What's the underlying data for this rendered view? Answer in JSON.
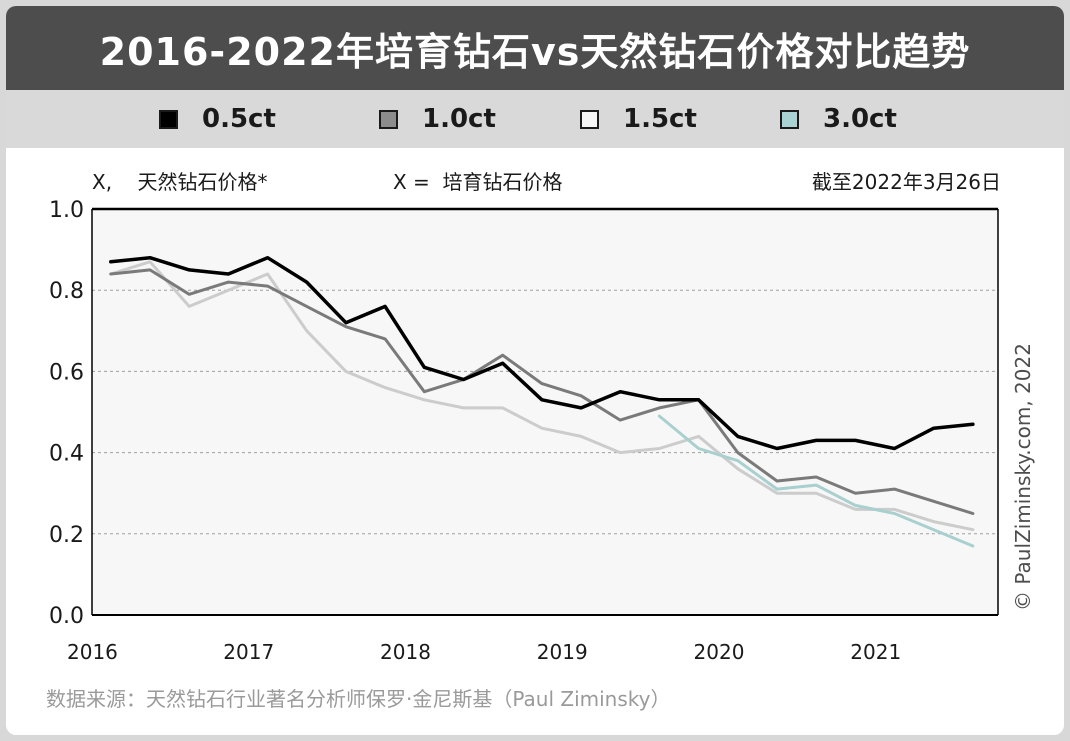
{
  "title": "2016-2022年培育钻石vs天然钻石价格对比趋势",
  "source": "数据来源：天然钻石行业著名分析师保罗·金尼斯基（Paul Ziminsky）",
  "copyright": "© PaulZiminsky.com, 2022",
  "chart_data": {
    "type": "line",
    "title": "2016-2022年培育钻石vs天然钻石价格对比趋势",
    "annotation_left": "X,    天然钻石价格*",
    "annotation_mid": "X =  培育钻石价格",
    "date_note": "截至2022年3月26日",
    "ylim": [
      0,
      1.0
    ],
    "yticks": [
      "0.0",
      "0.2",
      "0.4",
      "0.6",
      "0.8",
      "1.0"
    ],
    "xlim": [
      2016,
      2021.78
    ],
    "xticks": [
      "2016",
      "2017",
      "2018",
      "2019",
      "2020",
      "2021"
    ],
    "grid": true,
    "series": [
      {
        "name": "0.5ct",
        "color": "#000000",
        "swatch": "#000000",
        "points": [
          [
            2016.12,
            0.87
          ],
          [
            2016.37,
            0.88
          ],
          [
            2016.62,
            0.85
          ],
          [
            2016.87,
            0.84
          ],
          [
            2017.12,
            0.88
          ],
          [
            2017.37,
            0.82
          ],
          [
            2017.62,
            0.72
          ],
          [
            2017.87,
            0.76
          ],
          [
            2018.12,
            0.61
          ],
          [
            2018.37,
            0.58
          ],
          [
            2018.62,
            0.62
          ],
          [
            2018.87,
            0.53
          ],
          [
            2019.12,
            0.51
          ],
          [
            2019.37,
            0.55
          ],
          [
            2019.62,
            0.53
          ],
          [
            2019.87,
            0.53
          ],
          [
            2020.12,
            0.44
          ],
          [
            2020.37,
            0.41
          ],
          [
            2020.62,
            0.43
          ],
          [
            2020.87,
            0.43
          ],
          [
            2021.12,
            0.41
          ],
          [
            2021.37,
            0.46
          ],
          [
            2021.62,
            0.47
          ]
        ]
      },
      {
        "name": "1.0ct",
        "color": "#7a7a7a",
        "swatch": "#8c8c8c",
        "points": [
          [
            2016.12,
            0.84
          ],
          [
            2016.37,
            0.85
          ],
          [
            2016.62,
            0.79
          ],
          [
            2016.87,
            0.82
          ],
          [
            2017.12,
            0.81
          ],
          [
            2017.37,
            0.76
          ],
          [
            2017.62,
            0.71
          ],
          [
            2017.87,
            0.68
          ],
          [
            2018.12,
            0.55
          ],
          [
            2018.37,
            0.58
          ],
          [
            2018.62,
            0.64
          ],
          [
            2018.87,
            0.57
          ],
          [
            2019.12,
            0.54
          ],
          [
            2019.37,
            0.48
          ],
          [
            2019.62,
            0.51
          ],
          [
            2019.87,
            0.53
          ],
          [
            2020.12,
            0.4
          ],
          [
            2020.37,
            0.33
          ],
          [
            2020.62,
            0.34
          ],
          [
            2020.87,
            0.3
          ],
          [
            2021.12,
            0.31
          ],
          [
            2021.37,
            0.28
          ],
          [
            2021.62,
            0.25
          ]
        ]
      },
      {
        "name": "1.5ct",
        "color": "#cccccc",
        "swatch": "#f5f5f5",
        "points": [
          [
            2016.12,
            0.84
          ],
          [
            2016.37,
            0.87
          ],
          [
            2016.62,
            0.76
          ],
          [
            2016.87,
            0.8
          ],
          [
            2017.12,
            0.84
          ],
          [
            2017.37,
            0.7
          ],
          [
            2017.62,
            0.6
          ],
          [
            2017.87,
            0.56
          ],
          [
            2018.12,
            0.53
          ],
          [
            2018.37,
            0.51
          ],
          [
            2018.62,
            0.51
          ],
          [
            2018.87,
            0.46
          ],
          [
            2019.12,
            0.44
          ],
          [
            2019.37,
            0.4
          ],
          [
            2019.62,
            0.41
          ],
          [
            2019.87,
            0.44
          ],
          [
            2020.12,
            0.36
          ],
          [
            2020.37,
            0.3
          ],
          [
            2020.62,
            0.3
          ],
          [
            2020.87,
            0.26
          ],
          [
            2021.12,
            0.26
          ],
          [
            2021.37,
            0.23
          ],
          [
            2021.62,
            0.21
          ]
        ]
      },
      {
        "name": "3.0ct",
        "color": "#a8d0cf",
        "swatch": "#a9d3d2",
        "points": [
          [
            2019.62,
            0.49
          ],
          [
            2019.87,
            0.41
          ],
          [
            2020.12,
            0.38
          ],
          [
            2020.37,
            0.31
          ],
          [
            2020.62,
            0.32
          ],
          [
            2020.87,
            0.27
          ],
          [
            2021.12,
            0.25
          ],
          [
            2021.37,
            0.21
          ],
          [
            2021.62,
            0.17
          ]
        ]
      }
    ]
  }
}
